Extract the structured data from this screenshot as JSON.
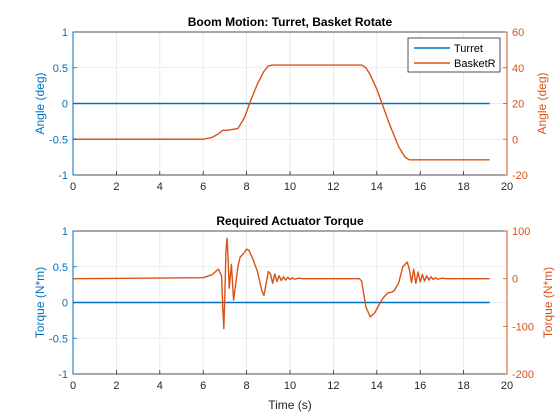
{
  "colors": {
    "left_axis": "#0072BD",
    "right_axis": "#D95319",
    "turret": "#0072BD",
    "basket": "#D95319",
    "grid": "#e5e5e5",
    "frame": "#262626",
    "background": "#ffffff"
  },
  "legend": {
    "entries": [
      "Turret",
      "BasketR"
    ],
    "placement": "top-right",
    "subplot": 0
  },
  "chart_data": [
    {
      "type": "line",
      "title": "Boom Motion: Turret, Basket Rotate",
      "xlabel": "",
      "ylabel_left": "Angle (deg)",
      "ylabel_right": "Angle (deg)",
      "xlim": [
        0,
        20
      ],
      "ylim_left": [
        -1,
        1
      ],
      "ylim_right": [
        -20,
        60
      ],
      "x_ticks": [
        "0",
        "2",
        "4",
        "6",
        "8",
        "10",
        "12",
        "14",
        "16",
        "18",
        "20"
      ],
      "y_left_ticks": [
        "-1",
        "-0.5",
        "0",
        "0.5",
        "1"
      ],
      "y_right_ticks": [
        "-20",
        "0",
        "20",
        "40",
        "60"
      ],
      "grid": true,
      "series": [
        {
          "name": "Turret",
          "axis": "left",
          "x": [
            0,
            19.2
          ],
          "y": [
            0,
            0
          ]
        },
        {
          "name": "BasketR",
          "axis": "right",
          "x": [
            0,
            6.0,
            6.4,
            6.7,
            6.9,
            7.1,
            7.6,
            7.9,
            8.2,
            8.5,
            8.8,
            9.0,
            9.2,
            10.0,
            12.0,
            13.3,
            13.5,
            13.7,
            14.0,
            14.3,
            14.6,
            15.0,
            15.3,
            15.5,
            15.7,
            19.2
          ],
          "y": [
            0,
            0,
            1,
            3,
            5,
            5,
            6,
            12,
            22,
            31,
            38,
            41,
            41.5,
            41.5,
            41.5,
            41.5,
            40,
            36,
            28,
            18,
            8,
            -4,
            -10,
            -11.5,
            -11.5,
            -11.5
          ]
        }
      ]
    },
    {
      "type": "line",
      "title": "Required Actuator Torque",
      "xlabel": "Time (s)",
      "ylabel_left": "Torque (N*m)",
      "ylabel_right": "Torque (N*m)",
      "xlim": [
        0,
        20
      ],
      "ylim_left": [
        -1,
        1
      ],
      "ylim_right": [
        -200,
        100
      ],
      "x_ticks": [
        "0",
        "2",
        "4",
        "6",
        "8",
        "10",
        "12",
        "14",
        "16",
        "18",
        "20"
      ],
      "y_left_ticks": [
        "-1",
        "-0.5",
        "0",
        "0.5",
        "1"
      ],
      "y_right_ticks": [
        "-200",
        "-100",
        "0",
        "100"
      ],
      "grid": true,
      "series": [
        {
          "name": "Turret",
          "axis": "left",
          "x": [
            0,
            19.2
          ],
          "y": [
            0,
            0
          ]
        },
        {
          "name": "BasketR",
          "axis": "right",
          "x": [
            0,
            6.0,
            6.4,
            6.7,
            6.85,
            6.9,
            6.95,
            7.0,
            7.05,
            7.1,
            7.15,
            7.2,
            7.3,
            7.4,
            7.5,
            7.6,
            7.7,
            7.8,
            7.9,
            8.0,
            8.1,
            8.3,
            8.5,
            8.7,
            8.8,
            8.9,
            9.0,
            9.1,
            9.2,
            9.3,
            9.4,
            9.5,
            9.6,
            9.7,
            9.8,
            9.9,
            10.0,
            10.1,
            10.2,
            10.4,
            10.6,
            10.8,
            11.0,
            12.0,
            13.2,
            13.3,
            13.5,
            13.7,
            13.9,
            14.1,
            14.3,
            14.5,
            14.7,
            14.8,
            15.0,
            15.2,
            15.4,
            15.5,
            15.6,
            15.7,
            15.8,
            15.9,
            16.0,
            16.1,
            16.2,
            16.3,
            16.4,
            16.5,
            16.6,
            16.7,
            16.8,
            17.0,
            17.2,
            19.2
          ],
          "y": [
            0,
            2,
            8,
            20,
            5,
            -60,
            -105,
            -30,
            60,
            85,
            40,
            -20,
            30,
            -45,
            -10,
            25,
            45,
            50,
            55,
            62,
            60,
            40,
            15,
            -25,
            -35,
            -10,
            15,
            10,
            -10,
            10,
            -6,
            6,
            -4,
            4,
            -3,
            3,
            -2,
            2,
            -1,
            1,
            0,
            0,
            0,
            0,
            0,
            -5,
            -60,
            -80,
            -72,
            -55,
            -40,
            -30,
            -28,
            -25,
            -10,
            25,
            35,
            20,
            -8,
            20,
            -10,
            14,
            -7,
            9,
            -5,
            6,
            -3,
            4,
            -2,
            2,
            -1,
            1,
            0,
            0
          ]
        }
      ]
    }
  ]
}
